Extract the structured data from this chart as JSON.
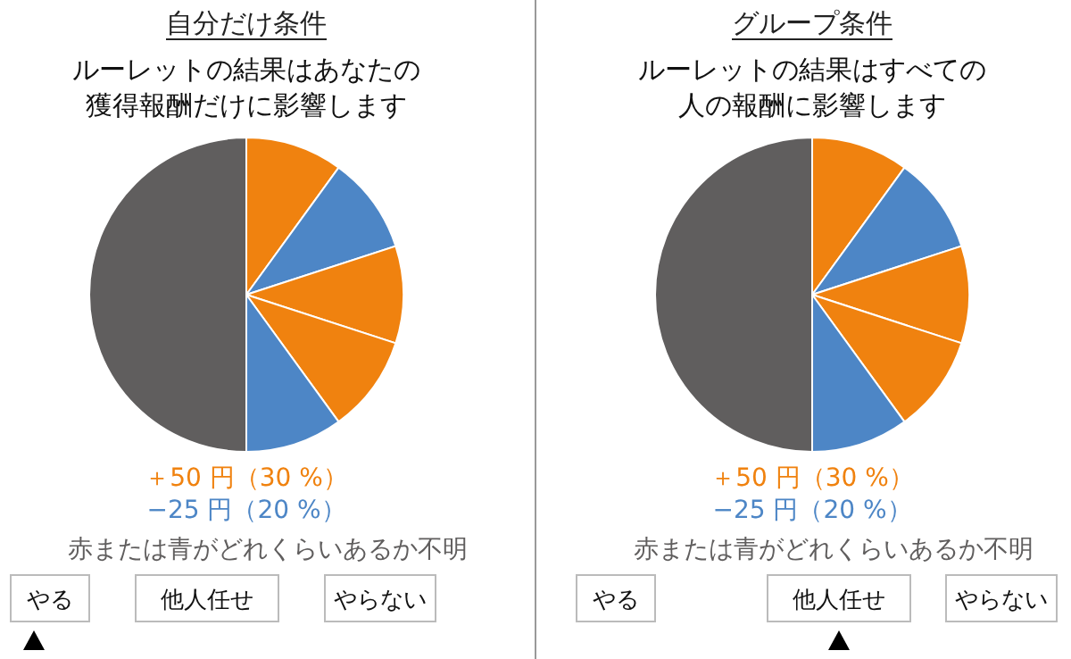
{
  "chart_data": [
    {
      "type": "pie",
      "title": "自分だけ条件",
      "subtitle": "ルーレットの結果はあなたの獲得報酬だけに影響します",
      "categories": [
        null,
        null,
        null,
        null,
        null,
        null
      ],
      "values": [
        10,
        10,
        10,
        10,
        10,
        50
      ],
      "colors": [
        "#f0820f",
        "#4d86c6",
        "#f0820f",
        "#f0820f",
        "#4d86c6",
        "#605e5e"
      ],
      "annotations": [
        "＋50 円（30 %）",
        "−25 円（20 %）",
        "赤または青がどれくらいあるか不明",
        "やる",
        "他人任せ",
        "やらない"
      ]
    },
    {
      "type": "pie",
      "title": "グループ条件",
      "subtitle": "ルーレットの結果はすべての人の報酬に影響します",
      "categories": [
        null,
        null,
        null,
        null,
        null,
        null
      ],
      "values": [
        10,
        10,
        10,
        10,
        10,
        50
      ],
      "colors": [
        "#f0820f",
        "#4d86c6",
        "#f0820f",
        "#f0820f",
        "#4d86c6",
        "#605e5e"
      ],
      "annotations": [
        "＋50 円（30 %）",
        "−25 円（20 %）",
        "赤または青がどれくらいあるか不明",
        "やる",
        "他人任せ",
        "やらない"
      ]
    }
  ]
}
